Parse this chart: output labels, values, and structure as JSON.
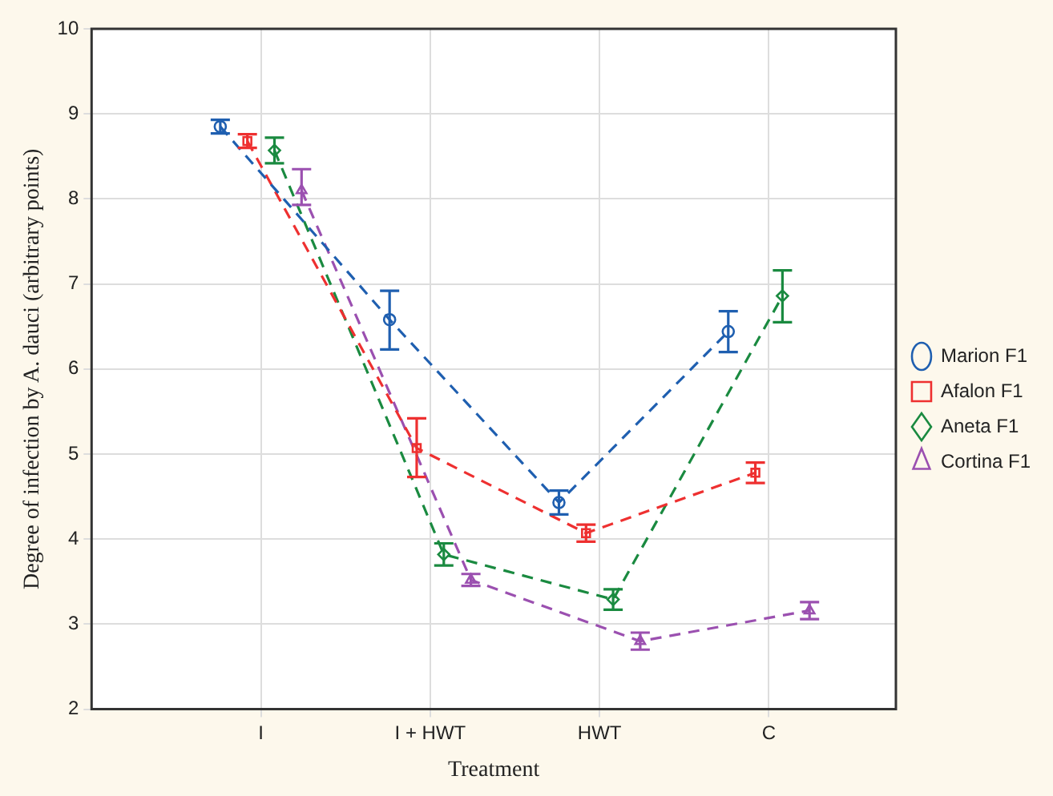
{
  "chart_data": {
    "type": "line",
    "xlabel": "Treatment",
    "ylabel": "Degree of infection by A. dauci (arbitrary points)",
    "categories": [
      "I",
      "I + HWT",
      "HWT",
      "C"
    ],
    "ylim": [
      2,
      10
    ],
    "yticks": [
      2,
      3,
      4,
      5,
      6,
      7,
      8,
      9,
      10
    ],
    "grid": true,
    "legend": "right",
    "line_style": "dashed",
    "series": [
      {
        "name": "Marion F1",
        "color": "#1f5fb0",
        "marker": "circle",
        "values": [
          8.85,
          6.58,
          4.43,
          6.44
        ],
        "errors": [
          0.08,
          [
            6.23,
            6.92
          ],
          0.14,
          [
            6.2,
            6.68
          ]
        ]
      },
      {
        "name": "Afalon F1",
        "color": "#ee3030",
        "marker": "square",
        "values": [
          8.68,
          5.07,
          4.07,
          4.78
        ],
        "errors": [
          0.08,
          [
            4.73,
            5.42
          ],
          0.1,
          0.12
        ]
      },
      {
        "name": "Aneta F1",
        "color": "#1a8a40",
        "marker": "diamond",
        "values": [
          8.57,
          3.82,
          3.29,
          6.86
        ],
        "errors": [
          0.15,
          0.13,
          0.12,
          [
            6.55,
            7.16
          ]
        ]
      },
      {
        "name": "Cortina F1",
        "color": "#9b50b0",
        "marker": "triangle",
        "values": [
          8.1,
          3.52,
          2.8,
          3.16
        ],
        "errors": [
          [
            7.93,
            8.35
          ],
          0.07,
          0.1,
          0.1
        ]
      }
    ]
  }
}
